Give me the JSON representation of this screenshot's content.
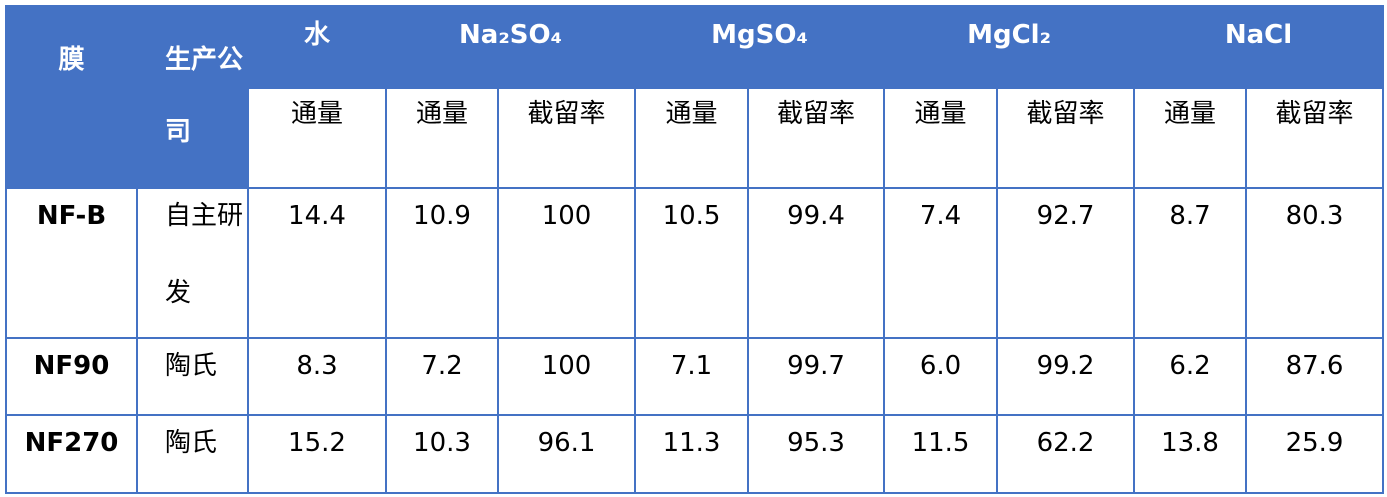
{
  "table": {
    "header": {
      "top": [
        "膜",
        "生产公司",
        "水",
        "Na₂SO₄",
        "MgSO₄",
        "MgCl₂",
        "NaCl"
      ],
      "sub": [
        "通量",
        "通量",
        "截留率",
        "通量",
        "截留率",
        "通量",
        "截留率",
        "通量",
        "截留率"
      ]
    },
    "rows": [
      [
        "NF-B",
        "自主研发",
        "14.4",
        "10.9",
        "100",
        "10.5",
        "99.4",
        "7.4",
        "92.7",
        "8.7",
        "80.3"
      ],
      [
        "NF90",
        "陶氏",
        "8.3",
        "7.2",
        "100",
        "7.1",
        "99.7",
        "6.0",
        "99.2",
        "6.2",
        "87.6"
      ],
      [
        "NF270",
        "陶氏",
        "15.2",
        "10.3",
        "96.1",
        "11.3",
        "95.3",
        "11.5",
        "62.2",
        "13.8",
        "25.9"
      ]
    ]
  }
}
